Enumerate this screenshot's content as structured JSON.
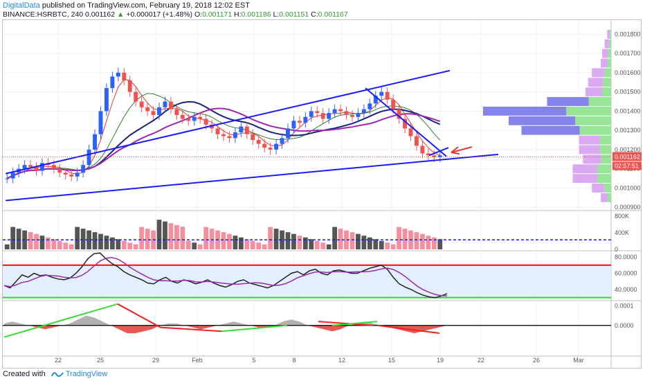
{
  "header": {
    "author": "DigitalData",
    "published": " published on TradingView.com, February 19, 2018 12:02 EST"
  },
  "symbol_line": {
    "symbol": "BINANCE:HSRBTC, 240",
    "last": "0.001162",
    "change_arrow": "▲",
    "change": "+0.000017 (+1.48%)",
    "o_label": "O:",
    "o": "0.001171",
    "h_label": "H:",
    "h": "0.001186",
    "l_label": "L:",
    "l": "0.001151",
    "c_label": "C:",
    "c": "0.001167"
  },
  "footer": {
    "created_with": "Created with",
    "brand": "TradingView"
  },
  "colors": {
    "candle_up": "#2962ff",
    "candle_down": "#ef5350",
    "trendline": "#1a1aff",
    "vol_up": "#555555",
    "vol_down": "#f48fa0",
    "rsi_line": "#222222",
    "rsi_signal": "#9c27b0",
    "rsi_upper": "#ff0000",
    "rsi_lower": "#22dd22",
    "osc_up_line": "#33dd33",
    "osc_down_line": "#ee2222",
    "vp_up": "#8de28d",
    "vp_down": "#d49af0",
    "vp_poc": "#6e6ee8"
  },
  "price_badge": {
    "price": "0.001162",
    "countdown": "02:57:51"
  },
  "chart_data": [
    {
      "type": "candlestick",
      "panel": "price",
      "symbol": "BINANCE:HSRBTC",
      "interval": "240",
      "y_ticks": [
        "0.001800",
        "0.001700",
        "0.001600",
        "0.001500",
        "0.001400",
        "0.001300",
        "0.001200",
        "0.001100",
        "0.001000",
        "0.000900"
      ],
      "ylim": [
        0.00089,
        0.00187
      ],
      "x_ticks": [
        "22",
        "25",
        "29",
        "Feb",
        "5",
        "8",
        "12",
        "15",
        "19",
        "22",
        "26",
        "Mar"
      ],
      "close_path": [
        0.00105,
        0.00108,
        0.0011,
        0.00112,
        0.00111,
        0.00109,
        0.00113,
        0.00112,
        0.0011,
        0.00108,
        0.00107,
        0.00106,
        0.00108,
        0.00112,
        0.0012,
        0.00128,
        0.0014,
        0.00152,
        0.00158,
        0.0016,
        0.00156,
        0.0015,
        0.00145,
        0.00142,
        0.0014,
        0.00138,
        0.00142,
        0.00145,
        0.00141,
        0.00138,
        0.00136,
        0.00135,
        0.00137,
        0.00136,
        0.00133,
        0.00131,
        0.00128,
        0.00127,
        0.00126,
        0.00129,
        0.00132,
        0.00128,
        0.00125,
        0.00123,
        0.00121,
        0.0012,
        0.00123,
        0.00126,
        0.00131,
        0.00135,
        0.00134,
        0.00137,
        0.0014,
        0.00139,
        0.00136,
        0.00139,
        0.00141,
        0.0014,
        0.00138,
        0.00137,
        0.00139,
        0.00141,
        0.00144,
        0.00148,
        0.0015,
        0.00146,
        0.00141,
        0.00136,
        0.00131,
        0.00127,
        0.00122,
        0.00118,
        0.00117,
        0.00116,
        0.00117
      ],
      "trendlines": "hand-drawn blue channel lines",
      "last_price": 0.001162
    },
    {
      "type": "bar",
      "panel": "volume",
      "y_ticks": [
        "800K",
        "400K",
        "0"
      ],
      "ylim": [
        0,
        900000
      ],
      "average_line": 230000
    },
    {
      "type": "line",
      "panel": "rsi",
      "y_ticks": [
        "80.0000",
        "60.0000",
        "40.0000"
      ],
      "ylim": [
        28,
        86
      ],
      "upper_band": 70,
      "lower_band": 30,
      "values": [
        45,
        42,
        50,
        58,
        55,
        60,
        57,
        58,
        55,
        53,
        52,
        54,
        60,
        68,
        78,
        84,
        85,
        78,
        72,
        68,
        62,
        58,
        55,
        52,
        48,
        47,
        52,
        55,
        50,
        48,
        52,
        50,
        47,
        49,
        52,
        48,
        45,
        43,
        46,
        50,
        52,
        48,
        46,
        44,
        42,
        45,
        50,
        55,
        60,
        62,
        58,
        63,
        65,
        60,
        58,
        63,
        64,
        62,
        60,
        60,
        63,
        66,
        68,
        70,
        65,
        55,
        47,
        43,
        40,
        36,
        33,
        31,
        30,
        32,
        35
      ]
    },
    {
      "type": "area",
      "panel": "oscillator",
      "y_ticks": [
        "0.0001",
        "0.0000"
      ],
      "ylim": [
        -0.00015,
        0.00012
      ],
      "zero_line": 0,
      "values": [
        1e-05,
        2e-05,
        1e-05,
        0.0,
        -1e-05,
        -2e-05,
        -1e-05,
        0.0,
        1e-05,
        3e-05,
        5e-05,
        4e-05,
        2e-05,
        0.0,
        -2e-05,
        -4e-05,
        -4e-05,
        -3e-05,
        -2e-05,
        0.0,
        1e-05,
        1e-05,
        0.0,
        -1e-05,
        -2e-05,
        -1e-05,
        0.0,
        1e-05,
        2e-05,
        1e-05,
        0.0,
        -1e-05,
        -1e-05,
        0.0,
        2e-05,
        3e-05,
        2e-05,
        0.0,
        -1e-05,
        -2e-05,
        -3e-05,
        -2e-05,
        0.0,
        1e-05,
        2e-05,
        1e-05,
        0.0,
        -1e-05,
        -2e-05,
        -3e-05,
        -4e-05,
        -3e-05,
        -2e-05,
        -1e-05,
        0.0
      ]
    }
  ]
}
